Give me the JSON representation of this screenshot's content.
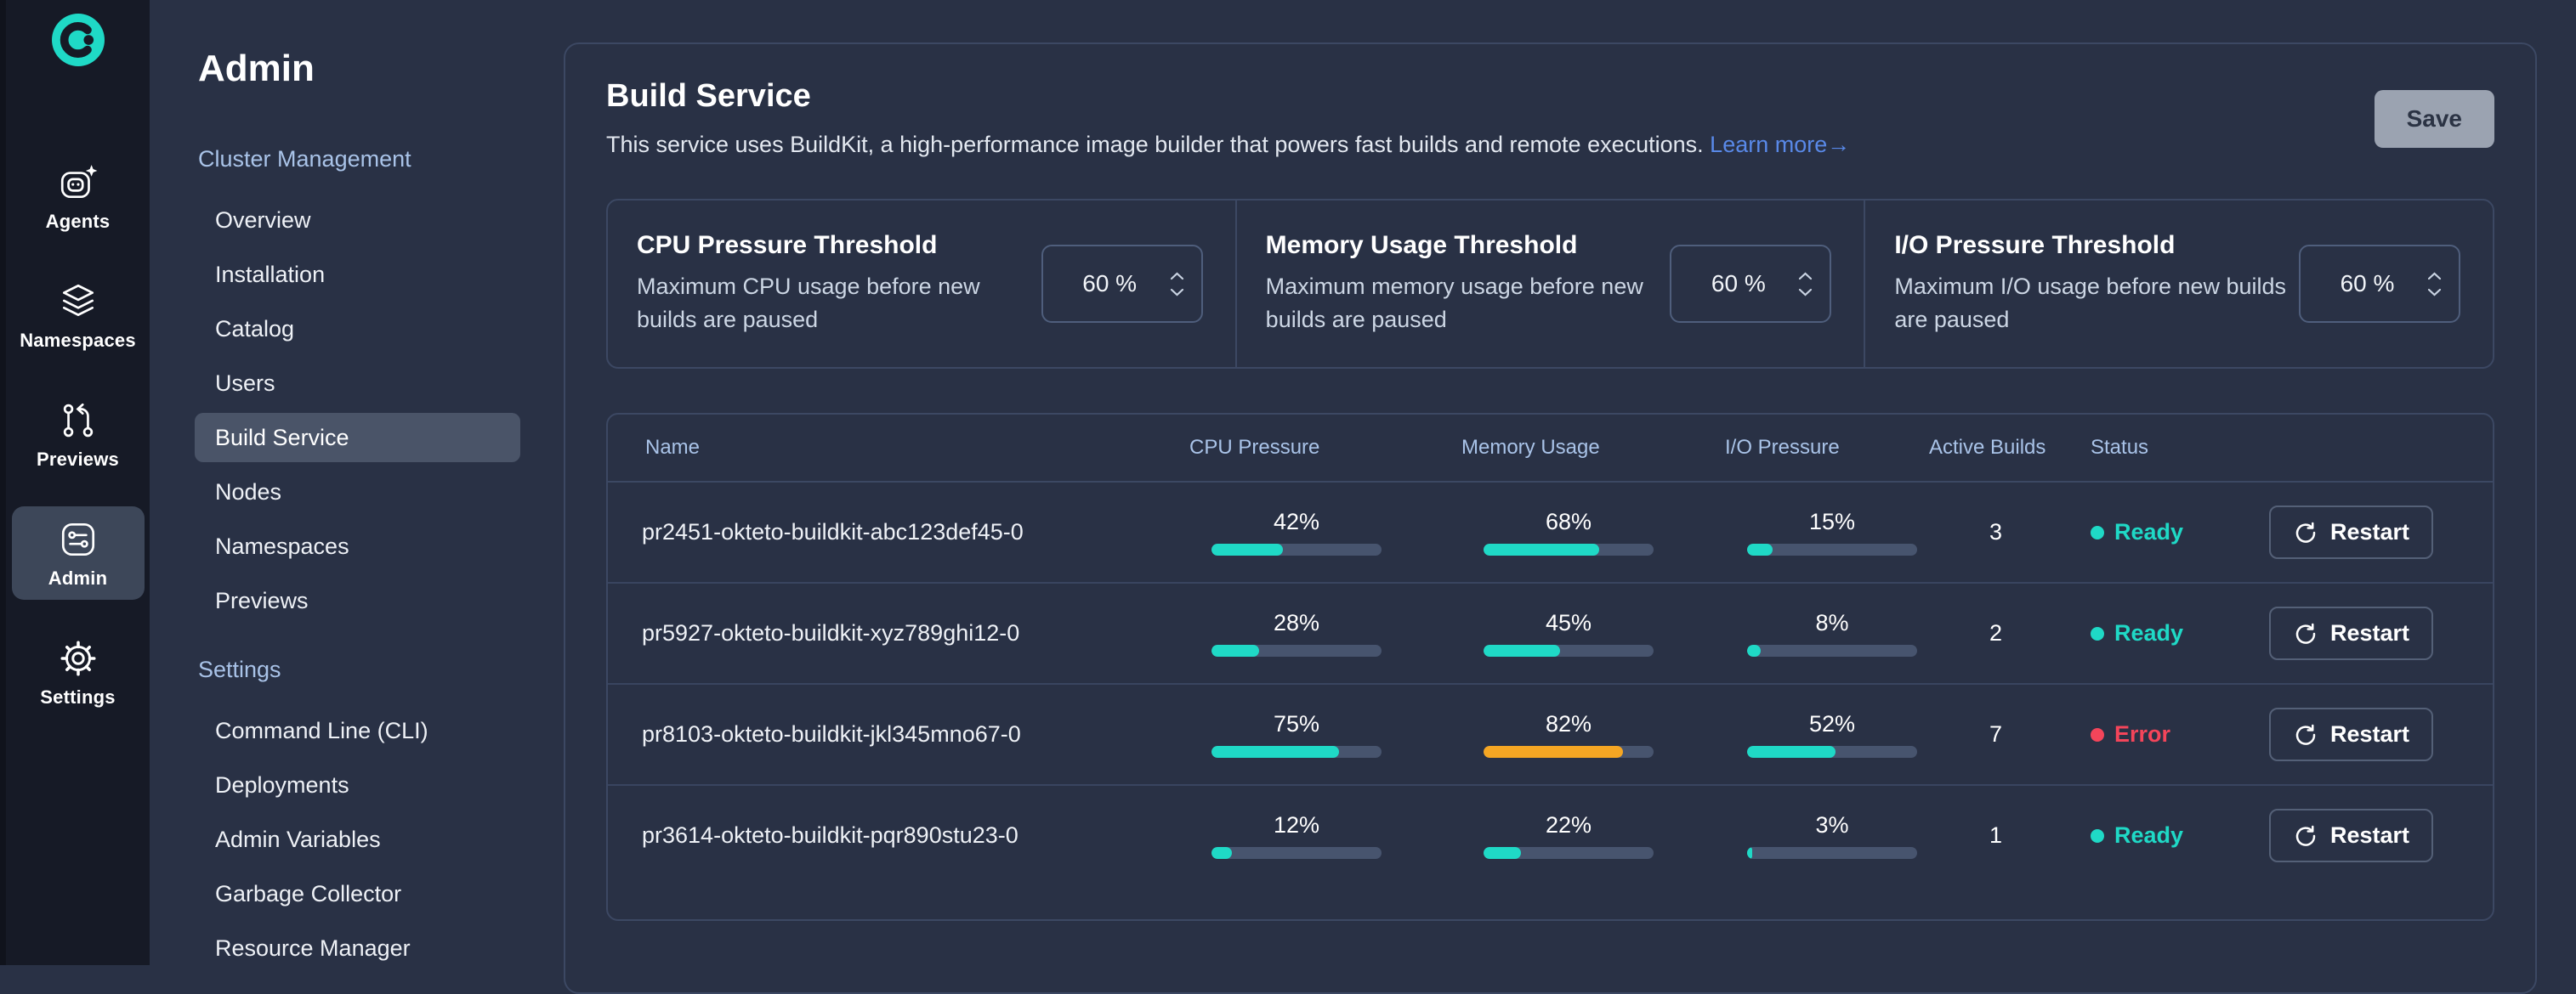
{
  "colors": {
    "accent_teal": "#1fd9c6",
    "warn_orange": "#f5a623",
    "error_red": "#f4455a",
    "link_blue": "#5989e8",
    "header_blue": "#a9c3e8"
  },
  "icon_rail": {
    "items": [
      {
        "label": "Agents",
        "icon": "robot-icon",
        "active": false
      },
      {
        "label": "Namespaces",
        "icon": "layers-icon",
        "active": false
      },
      {
        "label": "Previews",
        "icon": "git-compare-icon",
        "active": false
      },
      {
        "label": "Admin",
        "icon": "sliders-icon",
        "active": true
      },
      {
        "label": "Settings",
        "icon": "gear-icon",
        "active": false
      }
    ]
  },
  "sidebar": {
    "title": "Admin",
    "sections": [
      {
        "label": "Cluster Management",
        "items": [
          "Overview",
          "Installation",
          "Catalog",
          "Users",
          "Build Service",
          "Nodes",
          "Namespaces",
          "Previews"
        ],
        "active_item": "Build Service"
      },
      {
        "label": "Settings",
        "items": [
          "Command Line (CLI)",
          "Deployments",
          "Admin Variables",
          "Garbage Collector",
          "Resource Manager"
        ],
        "active_item": ""
      }
    ]
  },
  "main": {
    "title": "Build Service",
    "description": "This service uses BuildKit, a high-performance image builder that powers fast builds and remote executions.",
    "learn_more": "Learn more",
    "learn_more_arrow": "→",
    "save_label": "Save",
    "thresholds": [
      {
        "title": "CPU Pressure Threshold",
        "description": "Maximum CPU usage before new builds are paused",
        "value": "60 %"
      },
      {
        "title": "Memory Usage Threshold",
        "description": "Maximum memory usage before new builds are paused",
        "value": "60 %"
      },
      {
        "title": "I/O Pressure Threshold",
        "description": "Maximum I/O usage before new builds are paused",
        "value": "60 %"
      }
    ],
    "table": {
      "columns": [
        "Name",
        "CPU Pressure",
        "Memory Usage",
        "I/O Pressure",
        "Active Builds",
        "Status"
      ],
      "restart_label": "Restart",
      "rows": [
        {
          "name": "pr2451-okteto-buildkit-abc123def45-0",
          "cpu": {
            "label": "42%",
            "pct": 42,
            "color": "#1fd9c6"
          },
          "memory": {
            "label": "68%",
            "pct": 68,
            "color": "#1fd9c6"
          },
          "io": {
            "label": "15%",
            "pct": 15,
            "color": "#1fd9c6"
          },
          "active_builds": "3",
          "status": {
            "label": "Ready",
            "color": "#1fd9c6"
          }
        },
        {
          "name": "pr5927-okteto-buildkit-xyz789ghi12-0",
          "cpu": {
            "label": "28%",
            "pct": 28,
            "color": "#1fd9c6"
          },
          "memory": {
            "label": "45%",
            "pct": 45,
            "color": "#1fd9c6"
          },
          "io": {
            "label": "8%",
            "pct": 8,
            "color": "#1fd9c6"
          },
          "active_builds": "2",
          "status": {
            "label": "Ready",
            "color": "#1fd9c6"
          }
        },
        {
          "name": "pr8103-okteto-buildkit-jkl345mno67-0",
          "cpu": {
            "label": "75%",
            "pct": 75,
            "color": "#1fd9c6"
          },
          "memory": {
            "label": "82%",
            "pct": 82,
            "color": "#f5a623"
          },
          "io": {
            "label": "52%",
            "pct": 52,
            "color": "#1fd9c6"
          },
          "active_builds": "7",
          "status": {
            "label": "Error",
            "color": "#f4455a"
          }
        },
        {
          "name": "pr3614-okteto-buildkit-pqr890stu23-0",
          "cpu": {
            "label": "12%",
            "pct": 12,
            "color": "#1fd9c6"
          },
          "memory": {
            "label": "22%",
            "pct": 22,
            "color": "#1fd9c6"
          },
          "io": {
            "label": "3%",
            "pct": 3,
            "color": "#1fd9c6"
          },
          "active_builds": "1",
          "status": {
            "label": "Ready",
            "color": "#1fd9c6"
          }
        }
      ]
    }
  }
}
